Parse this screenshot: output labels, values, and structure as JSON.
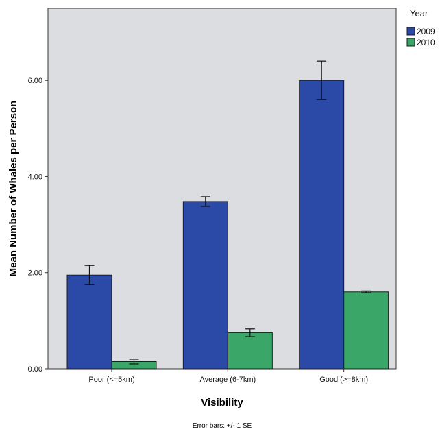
{
  "chart_data": {
    "type": "bar",
    "title": "",
    "xlabel": "Visibility",
    "ylabel": "Mean Number of Whales per Person",
    "footnote": "Error bars: +/- 1 SE",
    "categories": [
      "Poor (<=5km)",
      "Average (6-7km)",
      "Good (>=8km)"
    ],
    "ylim": [
      0,
      7.5
    ],
    "yticks": [
      0,
      2,
      4,
      6
    ],
    "ytick_labels": [
      "0.00",
      "2.00",
      "4.00",
      "6.00"
    ],
    "grid": false,
    "legend": {
      "title": "Year",
      "position": "top-right"
    },
    "series": [
      {
        "name": "2009",
        "color": "#2b4aa8",
        "values": [
          1.95,
          3.48,
          6.0
        ],
        "errors": [
          0.2,
          0.1,
          0.4
        ]
      },
      {
        "name": "2010",
        "color": "#3aa768",
        "values": [
          0.15,
          0.75,
          1.6
        ],
        "errors": [
          0.05,
          0.08,
          0.02
        ]
      }
    ]
  }
}
